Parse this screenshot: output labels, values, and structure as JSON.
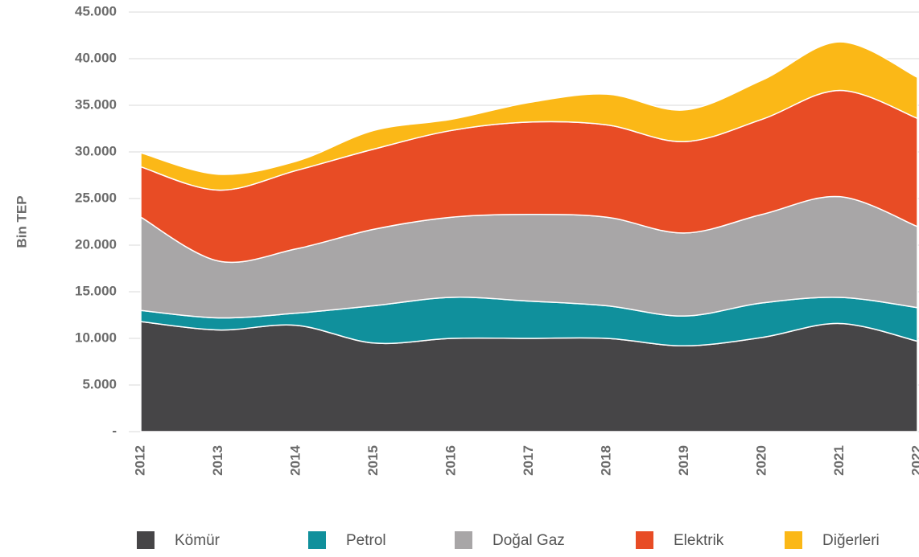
{
  "chart_data": {
    "type": "stacked_area",
    "y_label": "Bin TEP",
    "categories": [
      "2012",
      "2013",
      "2014",
      "2015",
      "2016",
      "2017",
      "2018",
      "2019",
      "2020",
      "2021",
      "2022"
    ],
    "series": [
      {
        "name": "Kömür",
        "color": "#464547",
        "values": [
          11800,
          10900,
          11400,
          9500,
          10000,
          10000,
          10000,
          9200,
          10100,
          11600,
          9700
        ]
      },
      {
        "name": "Petrol",
        "color": "#10909c",
        "values": [
          1200,
          1300,
          1300,
          4000,
          4400,
          4000,
          3500,
          3200,
          3700,
          2800,
          3600
        ]
      },
      {
        "name": "Doğal Gaz",
        "color": "#a8a6a7",
        "values": [
          10000,
          6100,
          6900,
          8200,
          8600,
          9300,
          9500,
          8900,
          9500,
          10800,
          8700
        ]
      },
      {
        "name": "Elektrik",
        "color": "#e84c25",
        "values": [
          5400,
          7600,
          8400,
          8600,
          9300,
          9900,
          9900,
          9800,
          10200,
          11400,
          11600
        ]
      },
      {
        "name": "Diğerleri",
        "color": "#fbb817",
        "values": [
          1500,
          1700,
          1000,
          2000,
          1200,
          2100,
          3300,
          3400,
          4200,
          5200,
          4400
        ]
      }
    ],
    "ylim": [
      0,
      45000
    ],
    "yticks": [
      {
        "value": 0,
        "label": "-"
      },
      {
        "value": 5000,
        "label": "5.000"
      },
      {
        "value": 10000,
        "label": "10.000"
      },
      {
        "value": 15000,
        "label": "15.000"
      },
      {
        "value": 20000,
        "label": "20.000"
      },
      {
        "value": 25000,
        "label": "25.000"
      },
      {
        "value": 30000,
        "label": "30.000"
      },
      {
        "value": 35000,
        "label": "35.000"
      },
      {
        "value": 40000,
        "label": "40.000"
      },
      {
        "value": 45000,
        "label": "45.000"
      }
    ],
    "grid": true
  }
}
